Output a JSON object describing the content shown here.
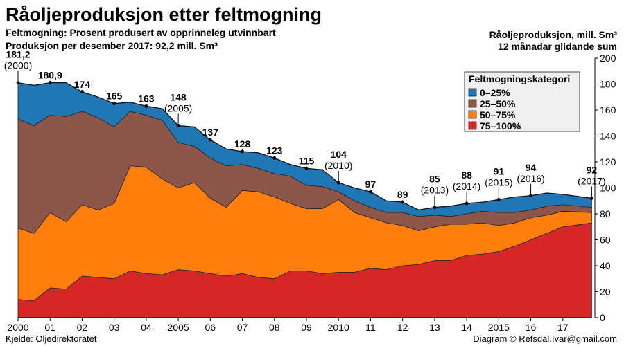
{
  "header": {
    "title": "Råoljeproduksjon etter feltmogning",
    "subtitle_line1": "Feltmogning: Prosent produsert av opprinneleg utvinnbart",
    "subtitle_line2": "Produksjon per desember 2017: 92,2 mill. Sm³",
    "right_line1": "Råoljeproduksjon, mill. Sm³",
    "right_line2": "12 månadar glidande sum"
  },
  "footer": {
    "source": "Kjelde: Oljedirektoratet",
    "credit": "Diagram © Refsdal.Ivar@gmail.com"
  },
  "chart_data": {
    "type": "area",
    "stacked": true,
    "title": "Råoljeproduksjon etter feltmogning",
    "ylabel": "Råoljeproduksjon, mill. Sm³",
    "xlim": [
      2000,
      2018
    ],
    "ylim": [
      0,
      200
    ],
    "y_ticks": [
      0,
      20,
      40,
      60,
      80,
      100,
      120,
      140,
      160,
      180,
      200
    ],
    "x_ticks": [
      {
        "x": 2000,
        "label": "2000"
      },
      {
        "x": 2001,
        "label": "01"
      },
      {
        "x": 2002,
        "label": "02"
      },
      {
        "x": 2003,
        "label": "03"
      },
      {
        "x": 2004,
        "label": "04"
      },
      {
        "x": 2005,
        "label": "2005"
      },
      {
        "x": 2006,
        "label": "06"
      },
      {
        "x": 2007,
        "label": "07"
      },
      {
        "x": 2008,
        "label": "08"
      },
      {
        "x": 2009,
        "label": "09"
      },
      {
        "x": 2010,
        "label": "2010"
      },
      {
        "x": 2011,
        "label": "11"
      },
      {
        "x": 2012,
        "label": "12"
      },
      {
        "x": 2013,
        "label": "13"
      },
      {
        "x": 2014,
        "label": "14"
      },
      {
        "x": 2015,
        "label": "2015"
      },
      {
        "x": 2016,
        "label": "16"
      },
      {
        "x": 2017,
        "label": "17"
      }
    ],
    "grid": false,
    "y_axis_side": "right",
    "legend": {
      "title": "Feltmogningskategori",
      "placement": "top-right",
      "items": [
        {
          "label": "0–25%",
          "color": "#1f77b4"
        },
        {
          "label": "25–50%",
          "color": "#8c564b"
        },
        {
          "label": "50–75%",
          "color": "#ff7f0e"
        },
        {
          "label": "75–100%",
          "color": "#d62728"
        }
      ]
    },
    "x": [
      2000.0,
      2000.5,
      2001.0,
      2001.5,
      2002.0,
      2002.5,
      2003.0,
      2003.5,
      2004.0,
      2004.5,
      2005.0,
      2005.5,
      2006.0,
      2006.5,
      2007.0,
      2007.5,
      2008.0,
      2008.5,
      2009.0,
      2009.5,
      2010.0,
      2010.5,
      2011.0,
      2011.5,
      2012.0,
      2012.5,
      2013.0,
      2013.5,
      2014.0,
      2014.5,
      2015.0,
      2015.5,
      2016.0,
      2016.5,
      2017.0,
      2017.9
    ],
    "series": [
      {
        "name": "75–100%",
        "color": "#d62728",
        "values": [
          14,
          13,
          23,
          22,
          32,
          31,
          30,
          36,
          34,
          33,
          37,
          36,
          34,
          32,
          34,
          31,
          30,
          36,
          36,
          34,
          35,
          35,
          38,
          37,
          40,
          41,
          44,
          44,
          48,
          49,
          51,
          55,
          60,
          65,
          70,
          73
        ]
      },
      {
        "name": "50–75%",
        "color": "#ff7f0e",
        "values": [
          55,
          52,
          58,
          52,
          55,
          52,
          58,
          81,
          82,
          74,
          63,
          68,
          58,
          53,
          64,
          66,
          63,
          52,
          48,
          50,
          56,
          46,
          39,
          36,
          31,
          26,
          26,
          28,
          24,
          24,
          20,
          18,
          17,
          14,
          12,
          8
        ]
      },
      {
        "name": "25–50%",
        "color": "#8c564b",
        "values": [
          84,
          83,
          75,
          81,
          72,
          71,
          59,
          42,
          40,
          45,
          35,
          28,
          31,
          32,
          20,
          18,
          18,
          21,
          18,
          17,
          6,
          9,
          8,
          8,
          10,
          11,
          9,
          6,
          8,
          9,
          10,
          8,
          6,
          7,
          5,
          4
        ]
      },
      {
        "name": "0–25%",
        "color": "#1f77b4",
        "values": [
          28,
          31,
          25,
          26,
          15,
          16,
          18,
          7,
          7,
          9,
          13,
          15,
          14,
          13,
          10,
          12,
          12,
          9,
          13,
          13,
          7,
          10,
          12,
          9,
          8,
          5,
          6,
          8,
          8,
          7,
          10,
          12,
          11,
          10,
          8,
          7
        ]
      }
    ],
    "annotations": [
      {
        "x": 2000,
        "value": "181,2",
        "year": "(2000)"
      },
      {
        "x": 2001,
        "value": "180,9",
        "year": ""
      },
      {
        "x": 2002,
        "value": "174",
        "year": ""
      },
      {
        "x": 2003,
        "value": "165",
        "year": ""
      },
      {
        "x": 2004,
        "value": "163",
        "year": ""
      },
      {
        "x": 2005,
        "value": "148",
        "year": "(2005)"
      },
      {
        "x": 2006,
        "value": "137",
        "year": ""
      },
      {
        "x": 2007,
        "value": "128",
        "year": ""
      },
      {
        "x": 2008,
        "value": "123",
        "year": ""
      },
      {
        "x": 2009,
        "value": "115",
        "year": ""
      },
      {
        "x": 2010,
        "value": "104",
        "year": "(2010)"
      },
      {
        "x": 2011,
        "value": "97",
        "year": ""
      },
      {
        "x": 2012,
        "value": "89",
        "year": ""
      },
      {
        "x": 2013,
        "value": "85",
        "year": "(2013)"
      },
      {
        "x": 2014,
        "value": "88",
        "year": "(2014)"
      },
      {
        "x": 2015,
        "value": "91",
        "year": "(2015)"
      },
      {
        "x": 2016,
        "value": "94",
        "year": "(2016)"
      },
      {
        "x": 2017.9,
        "value": "92",
        "year": "(2017)"
      }
    ]
  }
}
